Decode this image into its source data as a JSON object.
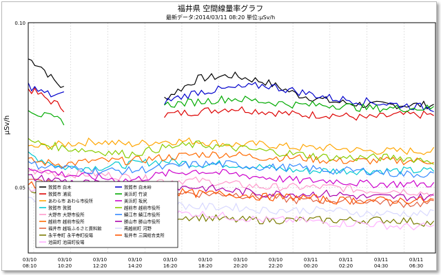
{
  "chart_data": {
    "type": "line",
    "title": "福井県 空間線量率グラフ",
    "subtitle": "最新データ:2014/03/11 08:20 単位:μSv/h",
    "ylabel": "μSv/h",
    "ylim": [
      0.03,
      0.1
    ],
    "y_ticks": [
      "0.10",
      "0.05"
    ],
    "y_tick_values": [
      0.1,
      0.05
    ],
    "x_ticks": [
      [
        "03/10",
        "08:10"
      ],
      [
        "03/10",
        "10:20"
      ],
      [
        "03/10",
        "12:20"
      ],
      [
        "03/10",
        "14:20"
      ],
      [
        "03/10",
        "16:20"
      ],
      [
        "03/10",
        "18:20"
      ],
      [
        "03/10",
        "20:20"
      ],
      [
        "03/10",
        "22:20"
      ],
      [
        "03/11",
        "00:20"
      ],
      [
        "03/11",
        "02:20"
      ],
      [
        "03/11",
        "04:30"
      ],
      [
        "03/11",
        "06:30"
      ]
    ],
    "x_range_hours": [
      8.1667,
      32.5
    ],
    "grid": true,
    "legend_position": "bottom-left",
    "series": [
      {
        "name": "敦賀市 白木",
        "color": "#000000",
        "segments": [
          [
            8.17,
            10.3,
            [
              0.089,
              0.087,
              0.083,
              0.08
            ]
          ],
          [
            16.3,
            32.4,
            [
              0.077,
              0.083,
              0.084,
              0.082,
              0.078,
              0.076,
              0.075,
              0.075,
              0.075
            ]
          ]
        ]
      },
      {
        "name": "敦賀市 浦底",
        "color": "#dd0000",
        "segments": [
          [
            8.17,
            10.3,
            [
              0.08,
              0.078,
              0.076,
              0.074
            ]
          ],
          [
            16.3,
            32.4,
            [
              0.072,
              0.073,
              0.074,
              0.073,
              0.072,
              0.072,
              0.071,
              0.072,
              0.072
            ]
          ]
        ]
      },
      {
        "name": "あわら市 あわら市役所",
        "color": "#ffa500",
        "segments": [
          [
            8.17,
            32.4,
            [
              0.062,
              0.063,
              0.064,
              0.063,
              0.064,
              0.064,
              0.063,
              0.063,
              0.062,
              0.062,
              0.061,
              0.061,
              0.061
            ]
          ]
        ]
      },
      {
        "name": "敦賀市 敦賀",
        "color": "#00c8d0",
        "segments": [
          [
            8.17,
            32.4,
            [
              0.06,
              0.056,
              0.056,
              0.057,
              0.058,
              0.057,
              0.057,
              0.056,
              0.055,
              0.055,
              0.055,
              0.055,
              0.055
            ]
          ]
        ]
      },
      {
        "name": "大野市 大野市役所",
        "color": "#ff99cc",
        "segments": [
          [
            8.17,
            32.4,
            [
              0.055,
              0.054,
              0.054,
              0.053,
              0.052,
              0.052,
              0.051,
              0.05,
              0.05,
              0.05,
              0.049,
              0.049,
              0.048
            ]
          ]
        ]
      },
      {
        "name": "越前市 越前市役所",
        "color": "#ff6a00",
        "segments": [
          [
            8.17,
            32.4,
            [
              0.058,
              0.057,
              0.058,
              0.058,
              0.059,
              0.06,
              0.06,
              0.059,
              0.059,
              0.058,
              0.058,
              0.058,
              0.058
            ]
          ]
        ]
      },
      {
        "name": "福井市 越坂ふるさと資料館",
        "color": "#e06040",
        "segments": [
          [
            8.17,
            32.4,
            [
              0.052,
              0.051,
              0.05,
              0.049,
              0.049,
              0.048,
              0.048,
              0.047,
              0.046,
              0.046,
              0.046,
              0.045,
              0.045
            ]
          ]
        ]
      },
      {
        "name": "永平寺町 永平寺町役場",
        "color": "#7a7a00",
        "segments": [
          [
            8.17,
            32.4,
            [
              0.05,
              0.046,
              0.044,
              0.041,
              0.041,
              0.041,
              0.04,
              0.04,
              0.04,
              0.04,
              0.04,
              0.04,
              0.039
            ]
          ]
        ]
      },
      {
        "name": "池田町 池田町役場",
        "color": "#ffb0ff",
        "segments": [
          [
            8.17,
            32.4,
            [
              0.049,
              0.045,
              0.044,
              0.043,
              0.042,
              0.042,
              0.041,
              0.04,
              0.04,
              0.039,
              0.039,
              0.038,
              0.038
            ]
          ]
        ]
      },
      {
        "name": "敦賀市 白木峠",
        "color": "#0000cc",
        "segments": [
          [
            8.17,
            10.3,
            [
              0.081,
              0.079,
              0.078,
              0.078
            ]
          ],
          [
            16.3,
            32.4,
            [
              0.076,
              0.079,
              0.08,
              0.081,
              0.079,
              0.077,
              0.076,
              0.075,
              0.074
            ]
          ]
        ]
      },
      {
        "name": "美浜町 竹波",
        "color": "#00aa00",
        "segments": [
          [
            8.17,
            10.3,
            [
              0.074,
              0.072,
              0.071,
              0.07
            ]
          ],
          [
            16.3,
            32.4,
            [
              0.075,
              0.076,
              0.077,
              0.076,
              0.075,
              0.075,
              0.074,
              0.074,
              0.074
            ]
          ]
        ]
      },
      {
        "name": "美浜町 坂尻",
        "color": "#cc00cc",
        "segments": [
          [
            8.17,
            32.4,
            [
              0.056,
              0.054,
              0.053,
              0.052,
              0.054,
              0.055,
              0.054,
              0.053,
              0.052,
              0.052,
              0.051,
              0.051,
              0.051
            ]
          ]
        ]
      },
      {
        "name": "越前市 越前市役所",
        "color": "#88cc00",
        "segments": [
          [
            8.17,
            32.4,
            [
              0.064,
              0.062,
              0.061,
              0.06,
              0.062,
              0.063,
              0.062,
              0.061,
              0.06,
              0.059,
              0.059,
              0.059,
              0.058
            ]
          ]
        ]
      },
      {
        "name": "鯖江市 鯖江市役所",
        "color": "#3388ff",
        "segments": [
          [
            8.17,
            32.4,
            [
              0.057,
              0.056,
              0.055,
              0.055,
              0.056,
              0.057,
              0.057,
              0.056,
              0.056,
              0.055,
              0.055,
              0.054,
              0.054
            ]
          ]
        ]
      },
      {
        "name": "勝山市 勝山市役所",
        "color": "#aa00aa",
        "segments": [
          [
            8.17,
            32.4,
            [
              0.053,
              0.052,
              0.051,
              0.05,
              0.05,
              0.05,
              0.049,
              0.048,
              0.048,
              0.048,
              0.047,
              0.047,
              0.047
            ]
          ]
        ]
      },
      {
        "name": "南越前町 河野",
        "color": "#d8d8ff",
        "segments": [
          [
            8.17,
            32.4,
            [
              0.047,
              0.046,
              0.046,
              0.045,
              0.045,
              0.044,
              0.044,
              0.043,
              0.043,
              0.043,
              0.042,
              0.042,
              0.042
            ]
          ]
        ]
      },
      {
        "name": "坂井市 三国総合支所",
        "color": "#ff5500",
        "segments": [
          [
            8.17,
            32.4,
            [
              0.051,
              0.05,
              0.049,
              0.049,
              0.049,
              0.048,
              0.048,
              0.047,
              0.047,
              0.046,
              0.046,
              0.046,
              0.046
            ]
          ]
        ]
      }
    ]
  }
}
